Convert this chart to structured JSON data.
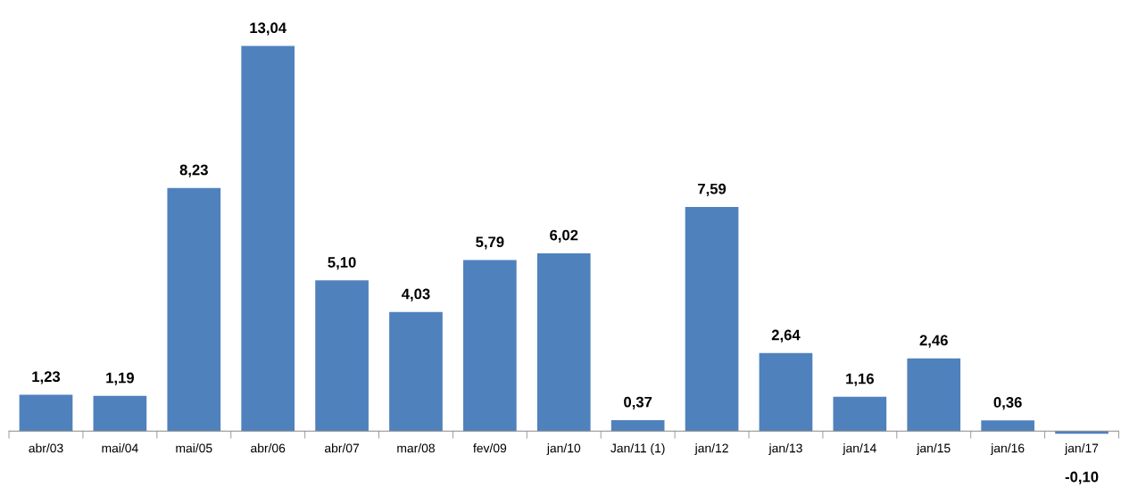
{
  "chart_data": {
    "type": "bar",
    "categories": [
      "abr/03",
      "mai/04",
      "mai/05",
      "abr/06",
      "abr/07",
      "mar/08",
      "fev/09",
      "jan/10",
      "Jan/11 (1)",
      "jan/12",
      "jan/13",
      "jan/14",
      "jan/15",
      "jan/16",
      "jan/17"
    ],
    "values": [
      1.23,
      1.19,
      8.23,
      13.04,
      5.1,
      4.03,
      5.79,
      6.02,
      0.37,
      7.59,
      2.64,
      1.16,
      2.46,
      0.36,
      -0.1
    ],
    "value_labels": [
      "1,23",
      "1,19",
      "8,23",
      "13,04",
      "5,10",
      "4,03",
      "5,79",
      "6,02",
      "0,37",
      "7,59",
      "2,64",
      "1,16",
      "2,46",
      "0,36",
      "-0,10"
    ],
    "color": "#4f81bd",
    "grid": false,
    "legend": false
  }
}
